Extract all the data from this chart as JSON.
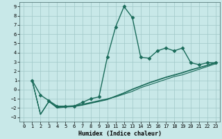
{
  "xlabel": "Humidex (Indice chaleur)",
  "background_color": "#c8e8e8",
  "grid_color": "#a0c8c8",
  "line_color": "#1a6b5a",
  "xlim": [
    -0.5,
    23.5
  ],
  "ylim": [
    -3.5,
    9.5
  ],
  "xticks": [
    0,
    1,
    2,
    3,
    4,
    5,
    6,
    7,
    8,
    9,
    10,
    11,
    12,
    13,
    14,
    15,
    16,
    17,
    18,
    19,
    20,
    21,
    22,
    23
  ],
  "yticks": [
    -3,
    -2,
    -1,
    0,
    1,
    2,
    3,
    4,
    5,
    6,
    7,
    8,
    9
  ],
  "series": [
    {
      "x": [
        1,
        2,
        3,
        4,
        5,
        6,
        7,
        8,
        9,
        10,
        11,
        12,
        13,
        14,
        15,
        16,
        17,
        18,
        19,
        20,
        21,
        22,
        23
      ],
      "y": [
        1,
        -0.6,
        -1.2,
        -1.8,
        -1.8,
        -1.8,
        -1.4,
        -1.0,
        -0.8,
        3.5,
        6.8,
        9.0,
        7.8,
        3.5,
        3.4,
        4.2,
        4.5,
        4.2,
        4.5,
        2.9,
        2.7,
        2.9,
        2.9
      ],
      "marker": "D",
      "markersize": 2.5,
      "linewidth": 1.0
    },
    {
      "x": [
        1,
        2,
        3,
        4,
        5,
        6,
        7,
        8,
        9,
        10,
        11,
        12,
        13,
        14,
        15,
        16,
        17,
        18,
        19,
        20,
        21,
        22,
        23
      ],
      "y": [
        1.0,
        -2.7,
        -1.3,
        -1.9,
        -1.8,
        -1.75,
        -1.6,
        -1.4,
        -1.2,
        -1.0,
        -0.8,
        -0.5,
        -0.2,
        0.2,
        0.5,
        0.8,
        1.1,
        1.4,
        1.6,
        1.9,
        2.2,
        2.5,
        2.8
      ],
      "marker": null,
      "markersize": 0,
      "linewidth": 0.8
    },
    {
      "x": [
        1,
        2,
        3,
        4,
        5,
        6,
        7,
        8,
        9,
        10,
        11,
        12,
        13,
        14,
        15,
        16,
        17,
        18,
        19,
        20,
        21,
        22,
        23
      ],
      "y": [
        1.0,
        -2.7,
        -1.3,
        -1.95,
        -1.85,
        -1.8,
        -1.65,
        -1.45,
        -1.25,
        -1.05,
        -0.7,
        -0.35,
        0.05,
        0.4,
        0.75,
        1.05,
        1.35,
        1.6,
        1.85,
        2.15,
        2.4,
        2.65,
        2.95
      ],
      "marker": null,
      "markersize": 0,
      "linewidth": 0.8
    },
    {
      "x": [
        1,
        2,
        3,
        4,
        5,
        6,
        7,
        8,
        9,
        10,
        11,
        12,
        13,
        14,
        15,
        16,
        17,
        18,
        19,
        20,
        21,
        22,
        23
      ],
      "y": [
        1.0,
        -2.7,
        -1.3,
        -2.0,
        -1.9,
        -1.85,
        -1.7,
        -1.5,
        -1.3,
        -1.1,
        -0.75,
        -0.4,
        0.0,
        0.35,
        0.7,
        1.0,
        1.3,
        1.55,
        1.8,
        2.1,
        2.35,
        2.6,
        2.9
      ],
      "marker": null,
      "markersize": 0,
      "linewidth": 0.8
    }
  ]
}
